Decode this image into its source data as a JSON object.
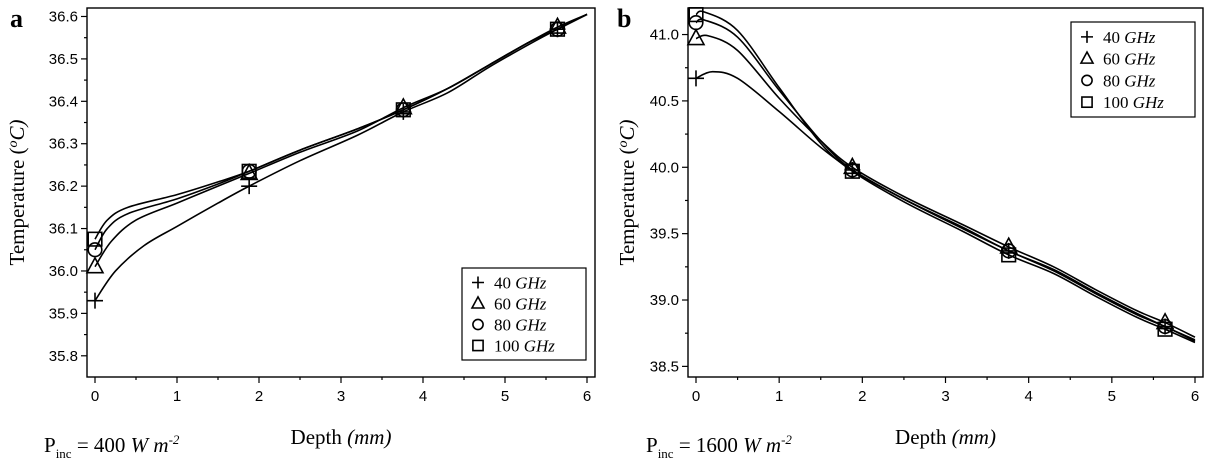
{
  "chart_data": [
    {
      "type": "line",
      "panel_label": "a",
      "xlabel_main": "Depth",
      "xlabel_unit": "(mm)",
      "ylabel_main": "Temperature",
      "ylabel_unit_open": "(",
      "ylabel_unit_sup": "o",
      "ylabel_unit_close": "C)",
      "xlim": [
        0,
        6
      ],
      "ylim": [
        35.75,
        36.62
      ],
      "xticks": [
        0,
        1,
        2,
        3,
        4,
        5,
        6
      ],
      "xtick_labels": [
        "0",
        "1",
        "2",
        "3",
        "4",
        "5",
        "6"
      ],
      "yticks": [
        35.8,
        35.9,
        36.0,
        36.1,
        36.2,
        36.3,
        36.4,
        36.5,
        36.6
      ],
      "ytick_labels": [
        "35.8",
        "35.9",
        "36.0",
        "36.1",
        "36.2",
        "36.3",
        "36.4",
        "36.5",
        "36.6"
      ],
      "legend_position": "bottom-right",
      "pinc": {
        "p": "P",
        "sub": "inc",
        "value": " = 400 ",
        "unit": "W m",
        "sup": "-2"
      },
      "series": [
        {
          "name_value": "40 ",
          "name_unit": "GHz",
          "marker": "plus",
          "x": [
            0,
            1.88,
            3.76,
            5.64
          ],
          "y": [
            35.93,
            36.2,
            36.375,
            36.57
          ],
          "curve": [
            [
              0,
              35.93
            ],
            [
              0.25,
              36.0
            ],
            [
              0.6,
              36.06
            ],
            [
              1.0,
              36.105
            ],
            [
              1.5,
              36.16
            ],
            [
              1.88,
              36.2
            ],
            [
              2.5,
              36.26
            ],
            [
              3.2,
              36.32
            ],
            [
              3.76,
              36.375
            ],
            [
              4.3,
              36.42
            ],
            [
              4.8,
              36.48
            ],
            [
              5.3,
              36.535
            ],
            [
              5.64,
              36.57
            ],
            [
              6.0,
              36.605
            ]
          ]
        },
        {
          "name_value": "60 ",
          "name_unit": "GHz",
          "marker": "triangle",
          "x": [
            0,
            1.88,
            3.76,
            5.64
          ],
          "y": [
            36.01,
            36.23,
            36.385,
            36.575
          ],
          "curve": [
            [
              0,
              36.01
            ],
            [
              0.2,
              36.07
            ],
            [
              0.5,
              36.12
            ],
            [
              1.0,
              36.16
            ],
            [
              1.5,
              36.2
            ],
            [
              1.88,
              36.23
            ],
            [
              2.5,
              36.28
            ],
            [
              3.2,
              36.33
            ],
            [
              3.76,
              36.385
            ],
            [
              4.3,
              36.43
            ],
            [
              4.8,
              36.485
            ],
            [
              5.3,
              36.54
            ],
            [
              5.64,
              36.575
            ],
            [
              6.0,
              36.605
            ]
          ]
        },
        {
          "name_value": "80 ",
          "name_unit": "GHz",
          "marker": "circle",
          "x": [
            0,
            1.88,
            3.76,
            5.64
          ],
          "y": [
            36.05,
            36.235,
            36.38,
            36.57
          ],
          "curve": [
            [
              0,
              36.05
            ],
            [
              0.15,
              36.1
            ],
            [
              0.4,
              36.135
            ],
            [
              1.0,
              36.17
            ],
            [
              1.5,
              36.205
            ],
            [
              1.88,
              36.235
            ],
            [
              2.5,
              36.285
            ],
            [
              3.2,
              36.335
            ],
            [
              3.76,
              36.38
            ],
            [
              4.3,
              36.43
            ],
            [
              4.8,
              36.485
            ],
            [
              5.3,
              36.54
            ],
            [
              5.64,
              36.57
            ],
            [
              6.0,
              36.605
            ]
          ]
        },
        {
          "name_value": "100 ",
          "name_unit": "GHz",
          "marker": "square",
          "x": [
            0,
            1.88,
            3.76,
            5.64
          ],
          "y": [
            36.075,
            36.235,
            36.38,
            36.57
          ],
          "curve": [
            [
              0,
              36.075
            ],
            [
              0.15,
              36.12
            ],
            [
              0.4,
              36.15
            ],
            [
              1.0,
              36.18
            ],
            [
              1.5,
              36.21
            ],
            [
              1.88,
              36.235
            ],
            [
              2.5,
              36.285
            ],
            [
              3.2,
              36.335
            ],
            [
              3.76,
              36.38
            ],
            [
              4.3,
              36.43
            ],
            [
              4.8,
              36.485
            ],
            [
              5.3,
              36.54
            ],
            [
              5.64,
              36.57
            ],
            [
              6.0,
              36.605
            ]
          ]
        }
      ]
    },
    {
      "type": "line",
      "panel_label": "b",
      "xlabel_main": "Depth",
      "xlabel_unit": "(mm)",
      "ylabel_main": "Temperature",
      "ylabel_unit_open": "(",
      "ylabel_unit_sup": "o",
      "ylabel_unit_close": "C)",
      "xlim": [
        0,
        6
      ],
      "ylim": [
        38.42,
        41.2
      ],
      "xticks": [
        0,
        1,
        2,
        3,
        4,
        5,
        6
      ],
      "xtick_labels": [
        "0",
        "1",
        "2",
        "3",
        "4",
        "5",
        "6"
      ],
      "yticks": [
        38.5,
        39.0,
        39.5,
        40.0,
        40.5,
        41.0
      ],
      "ytick_labels": [
        "38.5",
        "39.0",
        "39.5",
        "40.0",
        "40.5",
        "41.0"
      ],
      "legend_position": "top-right",
      "pinc": {
        "p": "P",
        "sub": "inc",
        "value": " = 1600 ",
        "unit": "W m",
        "sup": "-2"
      },
      "series": [
        {
          "name_value": "40 ",
          "name_unit": "GHz",
          "marker": "plus",
          "x": [
            0,
            1.88,
            3.76,
            5.64
          ],
          "y": [
            40.67,
            39.98,
            39.37,
            38.8
          ],
          "curve": [
            [
              0,
              40.67
            ],
            [
              0.2,
              40.72
            ],
            [
              0.5,
              40.67
            ],
            [
              1.0,
              40.42
            ],
            [
              1.5,
              40.15
            ],
            [
              1.88,
              39.98
            ],
            [
              2.5,
              39.76
            ],
            [
              3.2,
              39.54
            ],
            [
              3.76,
              39.37
            ],
            [
              4.3,
              39.22
            ],
            [
              4.8,
              39.05
            ],
            [
              5.3,
              38.89
            ],
            [
              5.64,
              38.8
            ],
            [
              6.0,
              38.69
            ]
          ]
        },
        {
          "name_value": "60 ",
          "name_unit": "GHz",
          "marker": "triangle",
          "x": [
            0,
            1.88,
            3.76,
            5.64
          ],
          "y": [
            40.97,
            40.0,
            39.4,
            38.83
          ],
          "curve": [
            [
              0,
              40.97
            ],
            [
              0.15,
              40.99
            ],
            [
              0.5,
              40.88
            ],
            [
              1.0,
              40.52
            ],
            [
              1.5,
              40.2
            ],
            [
              1.88,
              40.0
            ],
            [
              2.5,
              39.78
            ],
            [
              3.2,
              39.57
            ],
            [
              3.76,
              39.4
            ],
            [
              4.3,
              39.25
            ],
            [
              4.8,
              39.08
            ],
            [
              5.3,
              38.92
            ],
            [
              5.64,
              38.83
            ],
            [
              6.0,
              38.72
            ]
          ]
        },
        {
          "name_value": "80 ",
          "name_unit": "GHz",
          "marker": "circle",
          "x": [
            0,
            1.88,
            3.76,
            5.64
          ],
          "y": [
            41.09,
            39.98,
            39.37,
            38.8
          ],
          "curve": [
            [
              0,
              41.09
            ],
            [
              0.1,
              41.11
            ],
            [
              0.5,
              40.98
            ],
            [
              1.0,
              40.58
            ],
            [
              1.5,
              40.2
            ],
            [
              1.88,
              39.98
            ],
            [
              2.5,
              39.76
            ],
            [
              3.2,
              39.55
            ],
            [
              3.76,
              39.37
            ],
            [
              4.3,
              39.23
            ],
            [
              4.8,
              39.06
            ],
            [
              5.3,
              38.9
            ],
            [
              5.64,
              38.8
            ],
            [
              6.0,
              38.7
            ]
          ]
        },
        {
          "name_value": "100 ",
          "name_unit": "GHz",
          "marker": "square",
          "x": [
            0,
            1.88,
            3.76,
            5.64
          ],
          "y": [
            41.15,
            39.97,
            39.34,
            38.78
          ],
          "curve": [
            [
              0,
              41.15
            ],
            [
              0.1,
              41.17
            ],
            [
              0.5,
              41.03
            ],
            [
              1.0,
              40.6
            ],
            [
              1.5,
              40.18
            ],
            [
              1.88,
              39.97
            ],
            [
              2.5,
              39.74
            ],
            [
              3.2,
              39.52
            ],
            [
              3.76,
              39.34
            ],
            [
              4.3,
              39.2
            ],
            [
              4.8,
              39.03
            ],
            [
              5.3,
              38.87
            ],
            [
              5.64,
              38.78
            ],
            [
              6.0,
              38.68
            ]
          ]
        }
      ]
    }
  ]
}
